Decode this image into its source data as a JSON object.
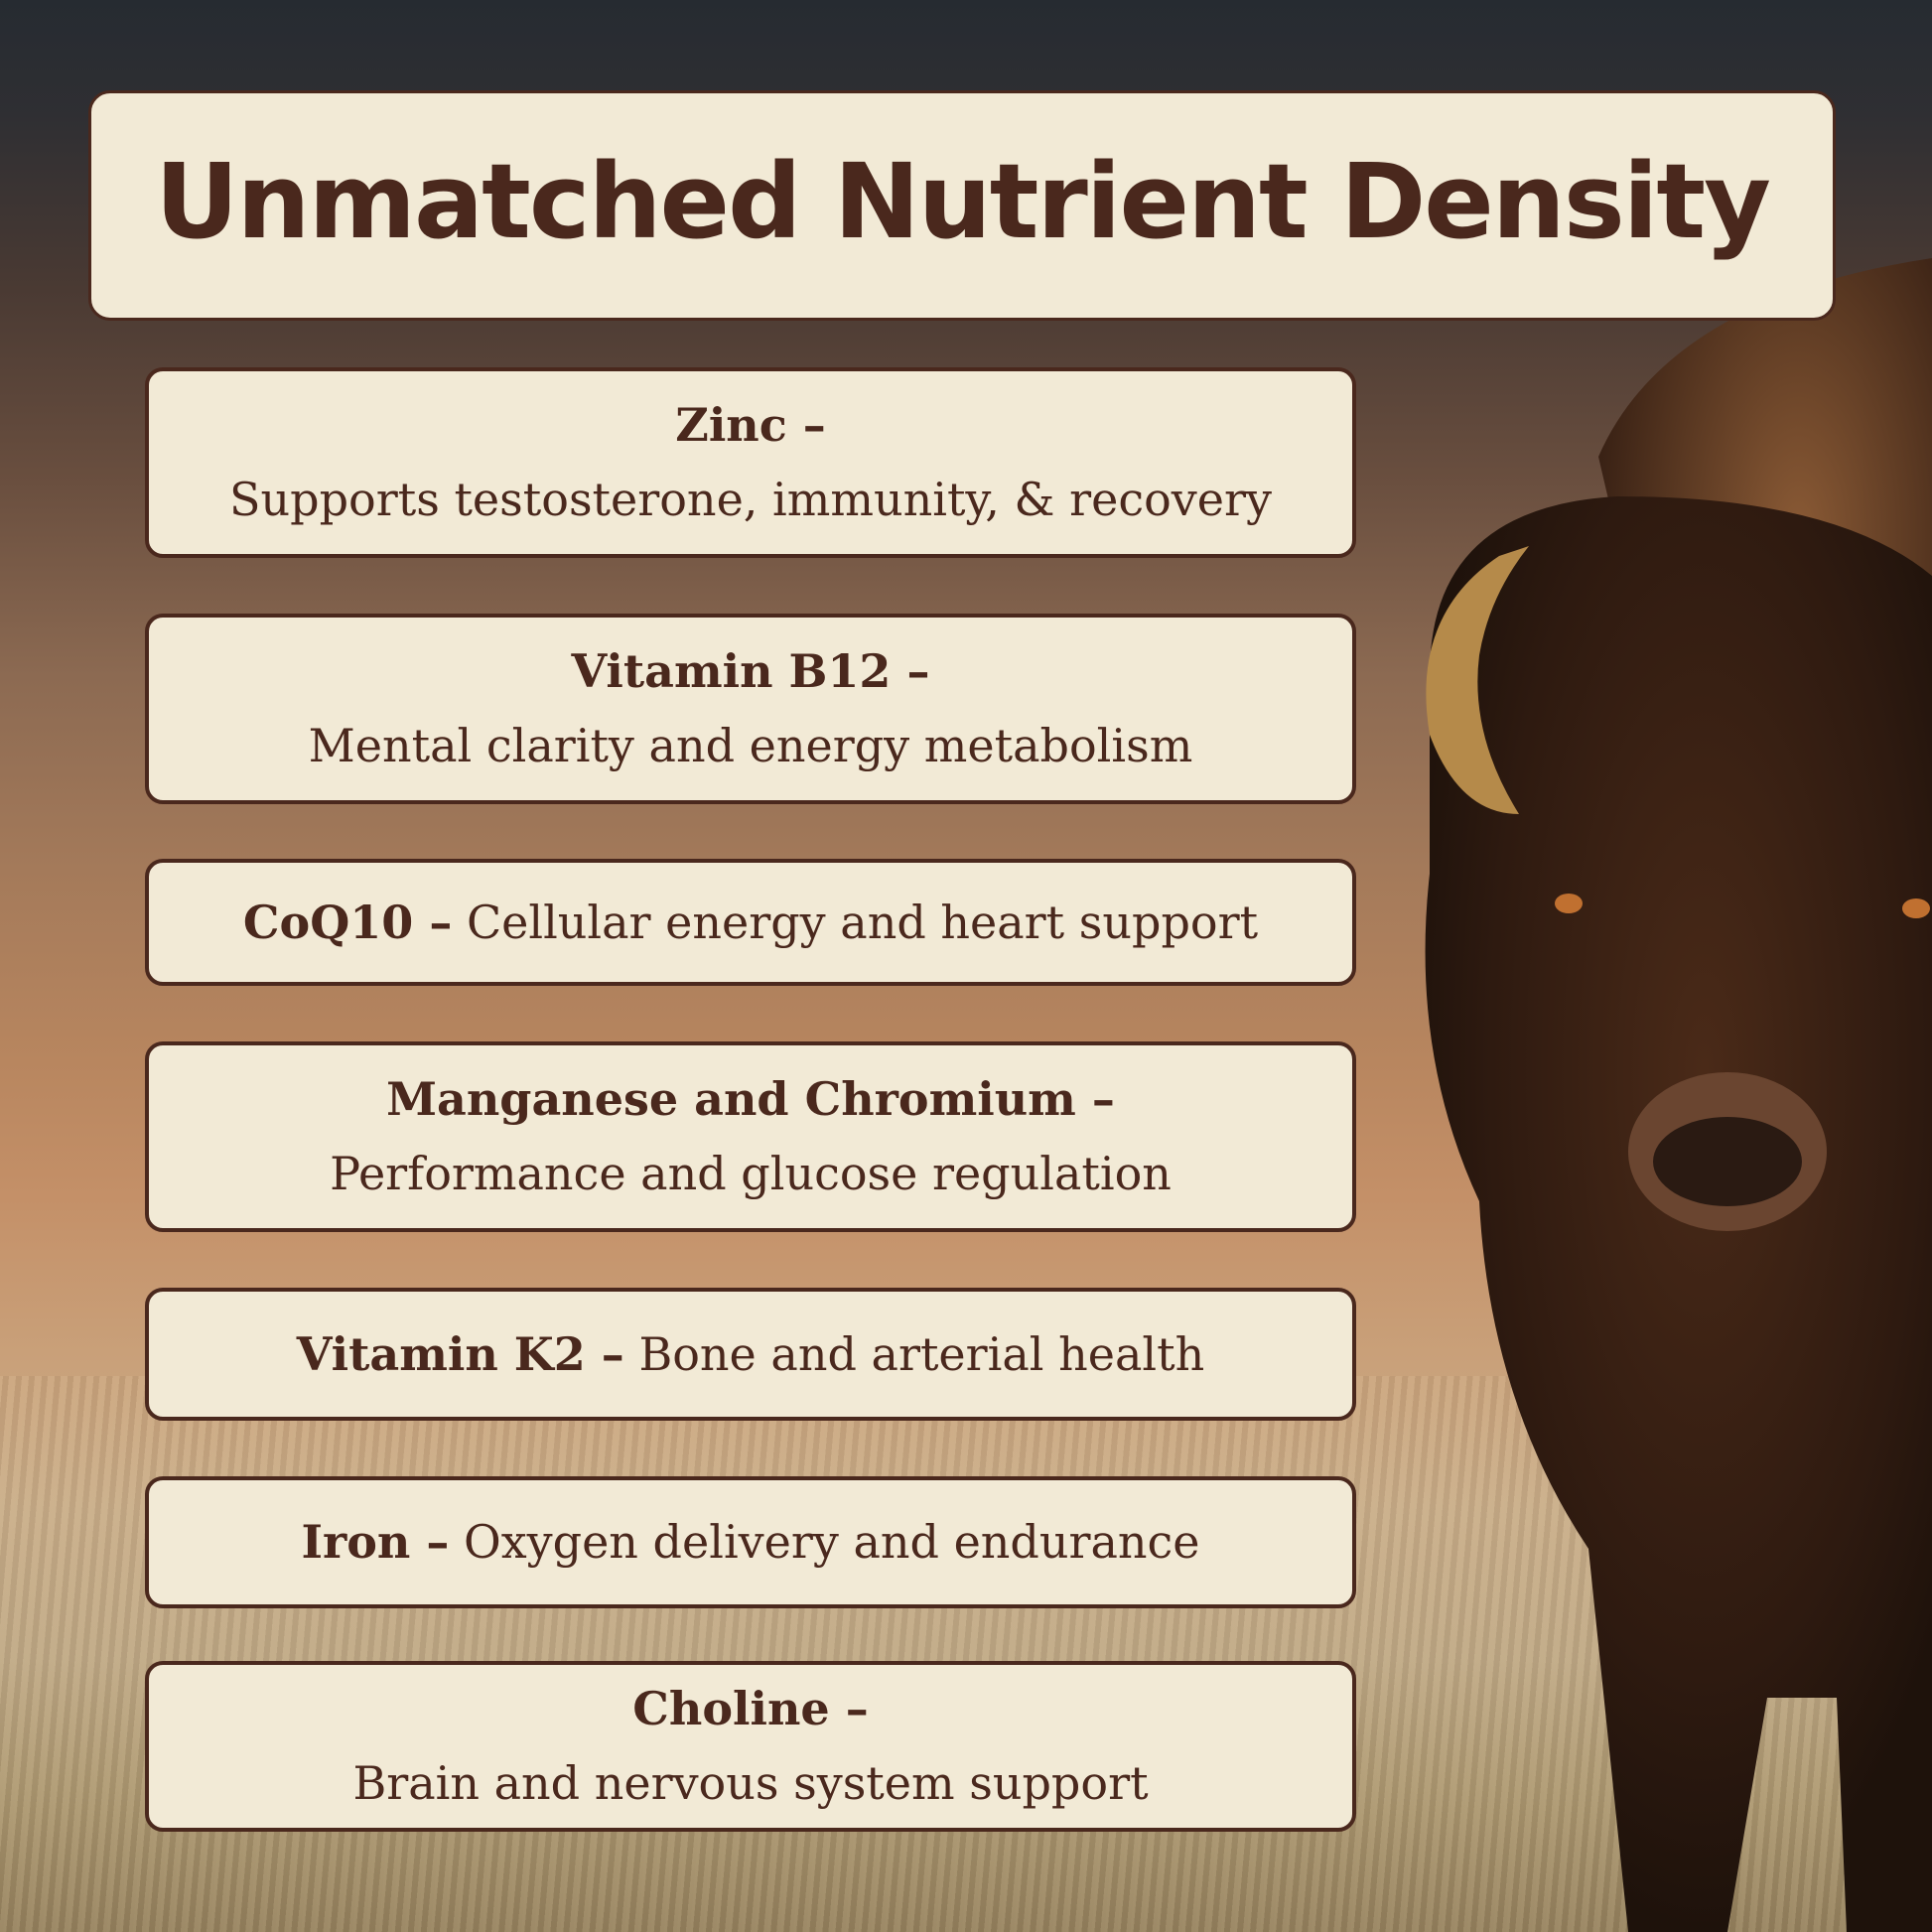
{
  "title": "Unmatched Nutrient Density",
  "items": [
    {
      "name": "Zinc –",
      "desc": "Supports testosterone, immunity, & recovery"
    },
    {
      "name": "Vitamin B12 –",
      "desc": "Mental clarity and energy metabolism"
    },
    {
      "name": "CoQ10 –",
      "desc": "Cellular energy and heart support"
    },
    {
      "name": "Manganese and Chromium –",
      "desc": "Performance and glucose regulation"
    },
    {
      "name": "Vitamin K2 –",
      "desc": "Bone and arterial health"
    },
    {
      "name": "Iron –",
      "desc": "Oxygen delivery and endurance"
    },
    {
      "name": "Choline –",
      "desc": "Brain and nervous system support"
    }
  ],
  "colors": {
    "card": "#f2ead6",
    "text": "#4a281d"
  }
}
